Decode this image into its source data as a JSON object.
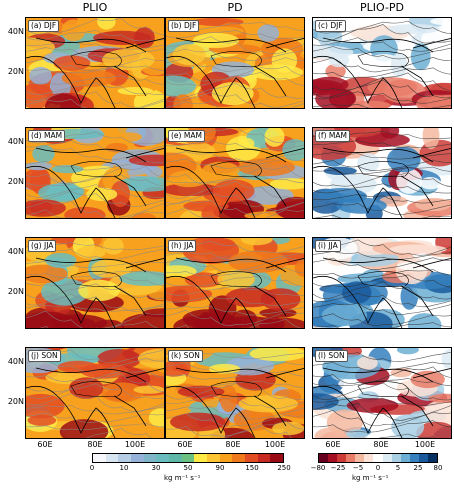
{
  "columns": [
    "PLIO",
    "PD",
    "PLIO-PD"
  ],
  "panels": [
    [
      "(a) DJF",
      "(b) DJF",
      "(c) DJF"
    ],
    [
      "(d) MAM",
      "(e) MAM",
      "(f) MAM"
    ],
    [
      "(g) JJA",
      "(h) JJA",
      "(i) JJA"
    ],
    [
      "(j) SON",
      "(k) SON",
      "(l) SON"
    ]
  ],
  "lat_labels": [
    "40N",
    "20N"
  ],
  "lon_labels": [
    "60E",
    "80E",
    "100E"
  ],
  "colorbar_left": {
    "ticks": [
      "0",
      "10",
      "30",
      "50",
      "90",
      "150",
      "250"
    ],
    "unit": "kg m⁻¹ s⁻¹",
    "colors": [
      "#f5f7fb",
      "#d7e4f1",
      "#b6cde6",
      "#95b2d8",
      "#7fb5c9",
      "#69bdbf",
      "#5fb7a8",
      "#6cc080",
      "#ffea46",
      "#fcc534",
      "#f7a11f",
      "#f07a1b",
      "#e34d23",
      "#c72a22",
      "#9a0a15"
    ]
  },
  "colorbar_right": {
    "ticks": [
      "−80",
      "−25",
      "−5",
      "0",
      "5",
      "25",
      "80"
    ],
    "unit": "kg m⁻¹ s⁻¹",
    "colors": [
      "#67001f",
      "#a50f23",
      "#cc3b36",
      "#e97c68",
      "#f5b8a0",
      "#fbe3d7",
      "#ffffff",
      "#ddebf4",
      "#a8cfe4",
      "#6caed4",
      "#3580bd",
      "#1a5a9c",
      "#053061"
    ]
  },
  "palettes": {
    "abs": [
      "#f5f7fb",
      "#b6cde6",
      "#95b2d8",
      "#69bdbf",
      "#ffea46",
      "#fcc534",
      "#f7a11f",
      "#f07a1b",
      "#e34d23",
      "#c72a22",
      "#9a0a15"
    ],
    "diff": [
      "#a50f23",
      "#cc3b36",
      "#e97c68",
      "#f5b8a0",
      "#fbe3d7",
      "#ffffff",
      "#ddebf4",
      "#a8cfe4",
      "#6caed4",
      "#3580bd",
      "#1a5a9c"
    ]
  }
}
